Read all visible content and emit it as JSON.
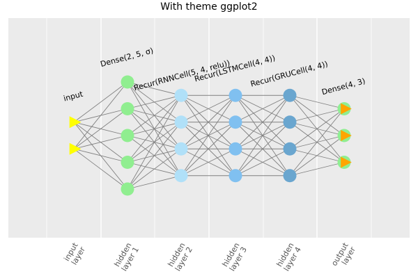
{
  "title": "With theme ggplot2",
  "colors": {
    "panel": "#ebebeb",
    "grid": "#ffffff",
    "edge": "#808080",
    "input": "#ffff00",
    "dense": "#90ee90",
    "rnn": "#b0e0f8",
    "lstm": "#80c0f0",
    "gru": "#6aa6cf",
    "output_marker": "#ffa500"
  },
  "layers": [
    {
      "label": "input",
      "tick": [
        "input",
        "layer"
      ],
      "nodes": 2,
      "shape": "triangle",
      "fill": "#ffff00"
    },
    {
      "label": "Dense(2, 5, σ)",
      "tick": [
        "hidden",
        "layer 1"
      ],
      "nodes": 5,
      "shape": "circle",
      "fill": "#90ee90"
    },
    {
      "label": "Recur(RNNCell(5, 4, relu))",
      "tick": [
        "hidden",
        "layer 2"
      ],
      "nodes": 4,
      "shape": "circle",
      "fill": "#b0e0f8"
    },
    {
      "label": "Recur(LSTMCell(4, 4))",
      "tick": [
        "hidden",
        "layer 3"
      ],
      "nodes": 4,
      "shape": "circle",
      "fill": "#80c0f0"
    },
    {
      "label": "Recur(GRUCell(4, 4))",
      "tick": [
        "hidden",
        "layer 4"
      ],
      "nodes": 4,
      "shape": "circle",
      "fill": "#6aa6cf"
    },
    {
      "label": "Dense(4, 3)",
      "tick": [
        "output",
        "layer"
      ],
      "nodes": 3,
      "shape": "circle-triangle",
      "fill": "#90ee90"
    }
  ]
}
